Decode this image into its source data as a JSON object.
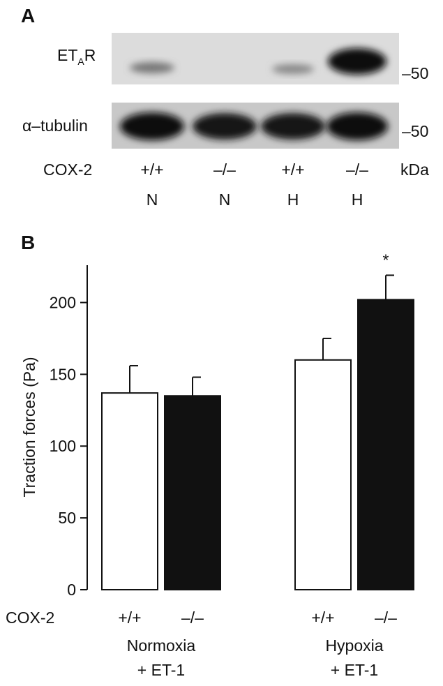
{
  "blot": {
    "panel_label": "A",
    "rows": [
      {
        "label_parts": [
          "ET",
          "A",
          "R"
        ],
        "marker": "–50"
      },
      {
        "label": "α–tubulin",
        "marker": "–50"
      }
    ],
    "genotype_label": "COX-2",
    "genotypes": [
      "+/+",
      "–/–",
      "+/+",
      "–/–"
    ],
    "unit": "kDa",
    "conditions": [
      "N",
      "N",
      "H",
      "H"
    ]
  },
  "chart_data": {
    "type": "bar",
    "panel_label": "B",
    "y_label": "Traction forces (Pa)",
    "x_label": "COX-2",
    "categories": [
      [
        "Normoxia",
        "+ ET-1"
      ],
      [
        "Hypoxia",
        "+ ET-1"
      ]
    ],
    "series": [
      {
        "name": "+/+",
        "color": "#ffffff",
        "values": [
          137,
          160
        ],
        "errors": [
          19,
          15
        ]
      },
      {
        "name": "–/–",
        "color": "#111111",
        "values": [
          135,
          202
        ],
        "errors": [
          13,
          17
        ],
        "markers": [
          null,
          "*"
        ]
      }
    ],
    "ylim": [
      0,
      226
    ],
    "yticks": [
      0,
      50,
      100,
      150,
      200
    ]
  }
}
